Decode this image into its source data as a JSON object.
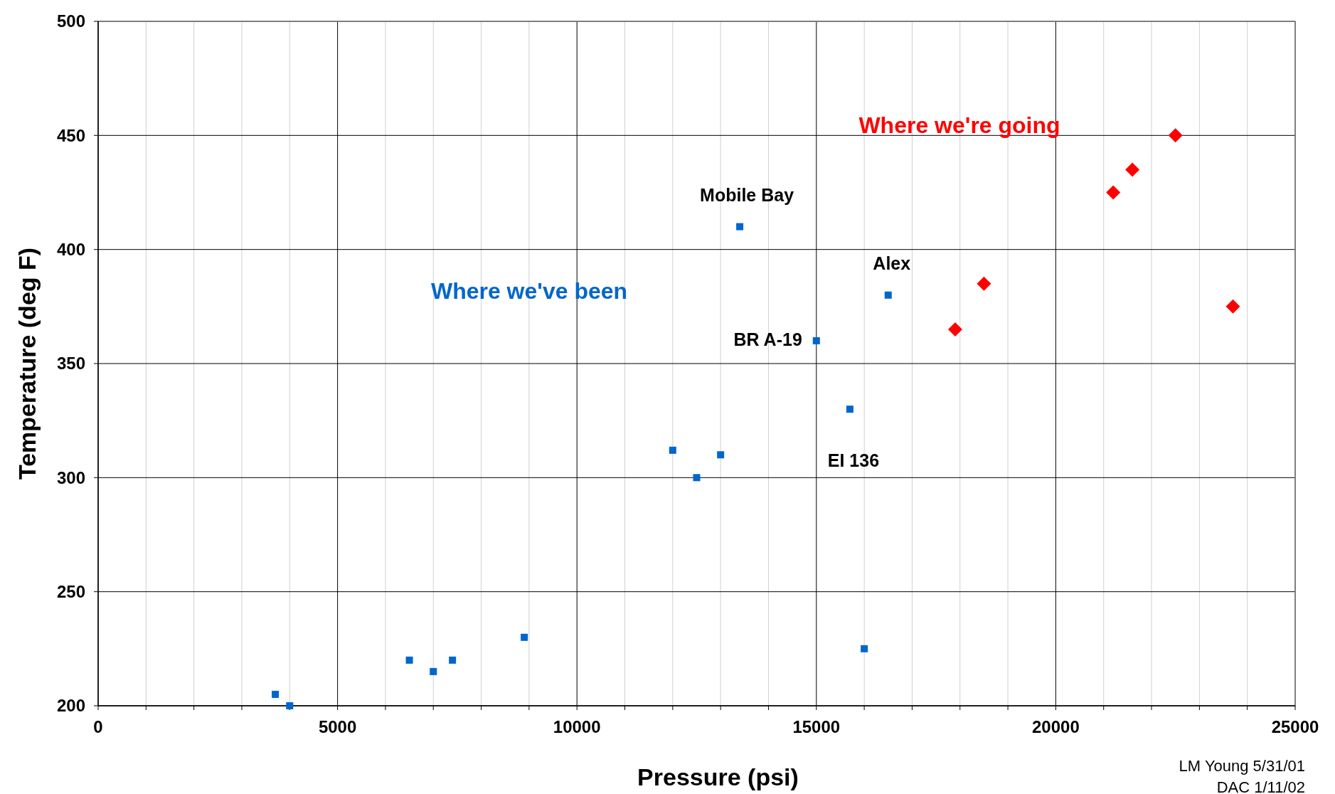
{
  "chart_data": {
    "type": "scatter",
    "xlabel": "Pressure (psi)",
    "ylabel": "Temperature (deg F)",
    "xlim": [
      0,
      25000
    ],
    "ylim": [
      200,
      500
    ],
    "xticks": [
      0,
      {
        "value": 1000,
        "label": null
      },
      {
        "value": 2000,
        "label": null
      },
      {
        "value": 3000,
        "label": null
      },
      {
        "value": 4000,
        "label": null
      },
      5000,
      {
        "value": 6000,
        "label": null
      },
      {
        "value": 7000,
        "label": null
      },
      {
        "value": 8000,
        "label": null
      },
      {
        "value": 9000,
        "label": null
      },
      10000,
      {
        "value": 11000,
        "label": null
      },
      {
        "value": 12000,
        "label": null
      },
      {
        "value": 13000,
        "label": null
      },
      {
        "value": 14000,
        "label": null
      },
      15000,
      {
        "value": 16000,
        "label": null
      },
      {
        "value": 17000,
        "label": null
      },
      {
        "value": 18000,
        "label": null
      },
      {
        "value": 19000,
        "label": null
      },
      20000,
      {
        "value": 21000,
        "label": null
      },
      {
        "value": 22000,
        "label": null
      },
      {
        "value": 23000,
        "label": null
      },
      {
        "value": 24000,
        "label": null
      },
      25000
    ],
    "yticks": [
      200,
      250,
      300,
      350,
      400,
      450,
      500
    ],
    "grid": true,
    "series": [
      {
        "name": "Where we've been",
        "color": "#0066cc",
        "marker": "square",
        "x": [
          3700,
          4000,
          6500,
          7000,
          7400,
          8900,
          12000,
          12500,
          13000,
          13400,
          15000,
          15700,
          16000,
          16500
        ],
        "values": [
          205,
          200,
          220,
          215,
          220,
          230,
          312,
          300,
          310,
          410,
          360,
          330,
          225,
          380
        ]
      },
      {
        "name": "Where we're going",
        "color": "#ff0000",
        "marker": "diamond",
        "x": [
          17900,
          18500,
          21200,
          21600,
          22500,
          23700
        ],
        "values": [
          365,
          385,
          425,
          435,
          450,
          375
        ]
      }
    ],
    "annotations": [
      {
        "text": "Mobile Bay",
        "x": 13400,
        "y": 410
      },
      {
        "text": "Alex",
        "x": 16500,
        "y": 380
      },
      {
        "text": "BR A-19",
        "x": 15000,
        "y": 360
      },
      {
        "text": "EI 136",
        "x": 15700,
        "y": 330
      },
      "LM Young 5/31/01",
      "DAC 1/11/02"
    ]
  }
}
